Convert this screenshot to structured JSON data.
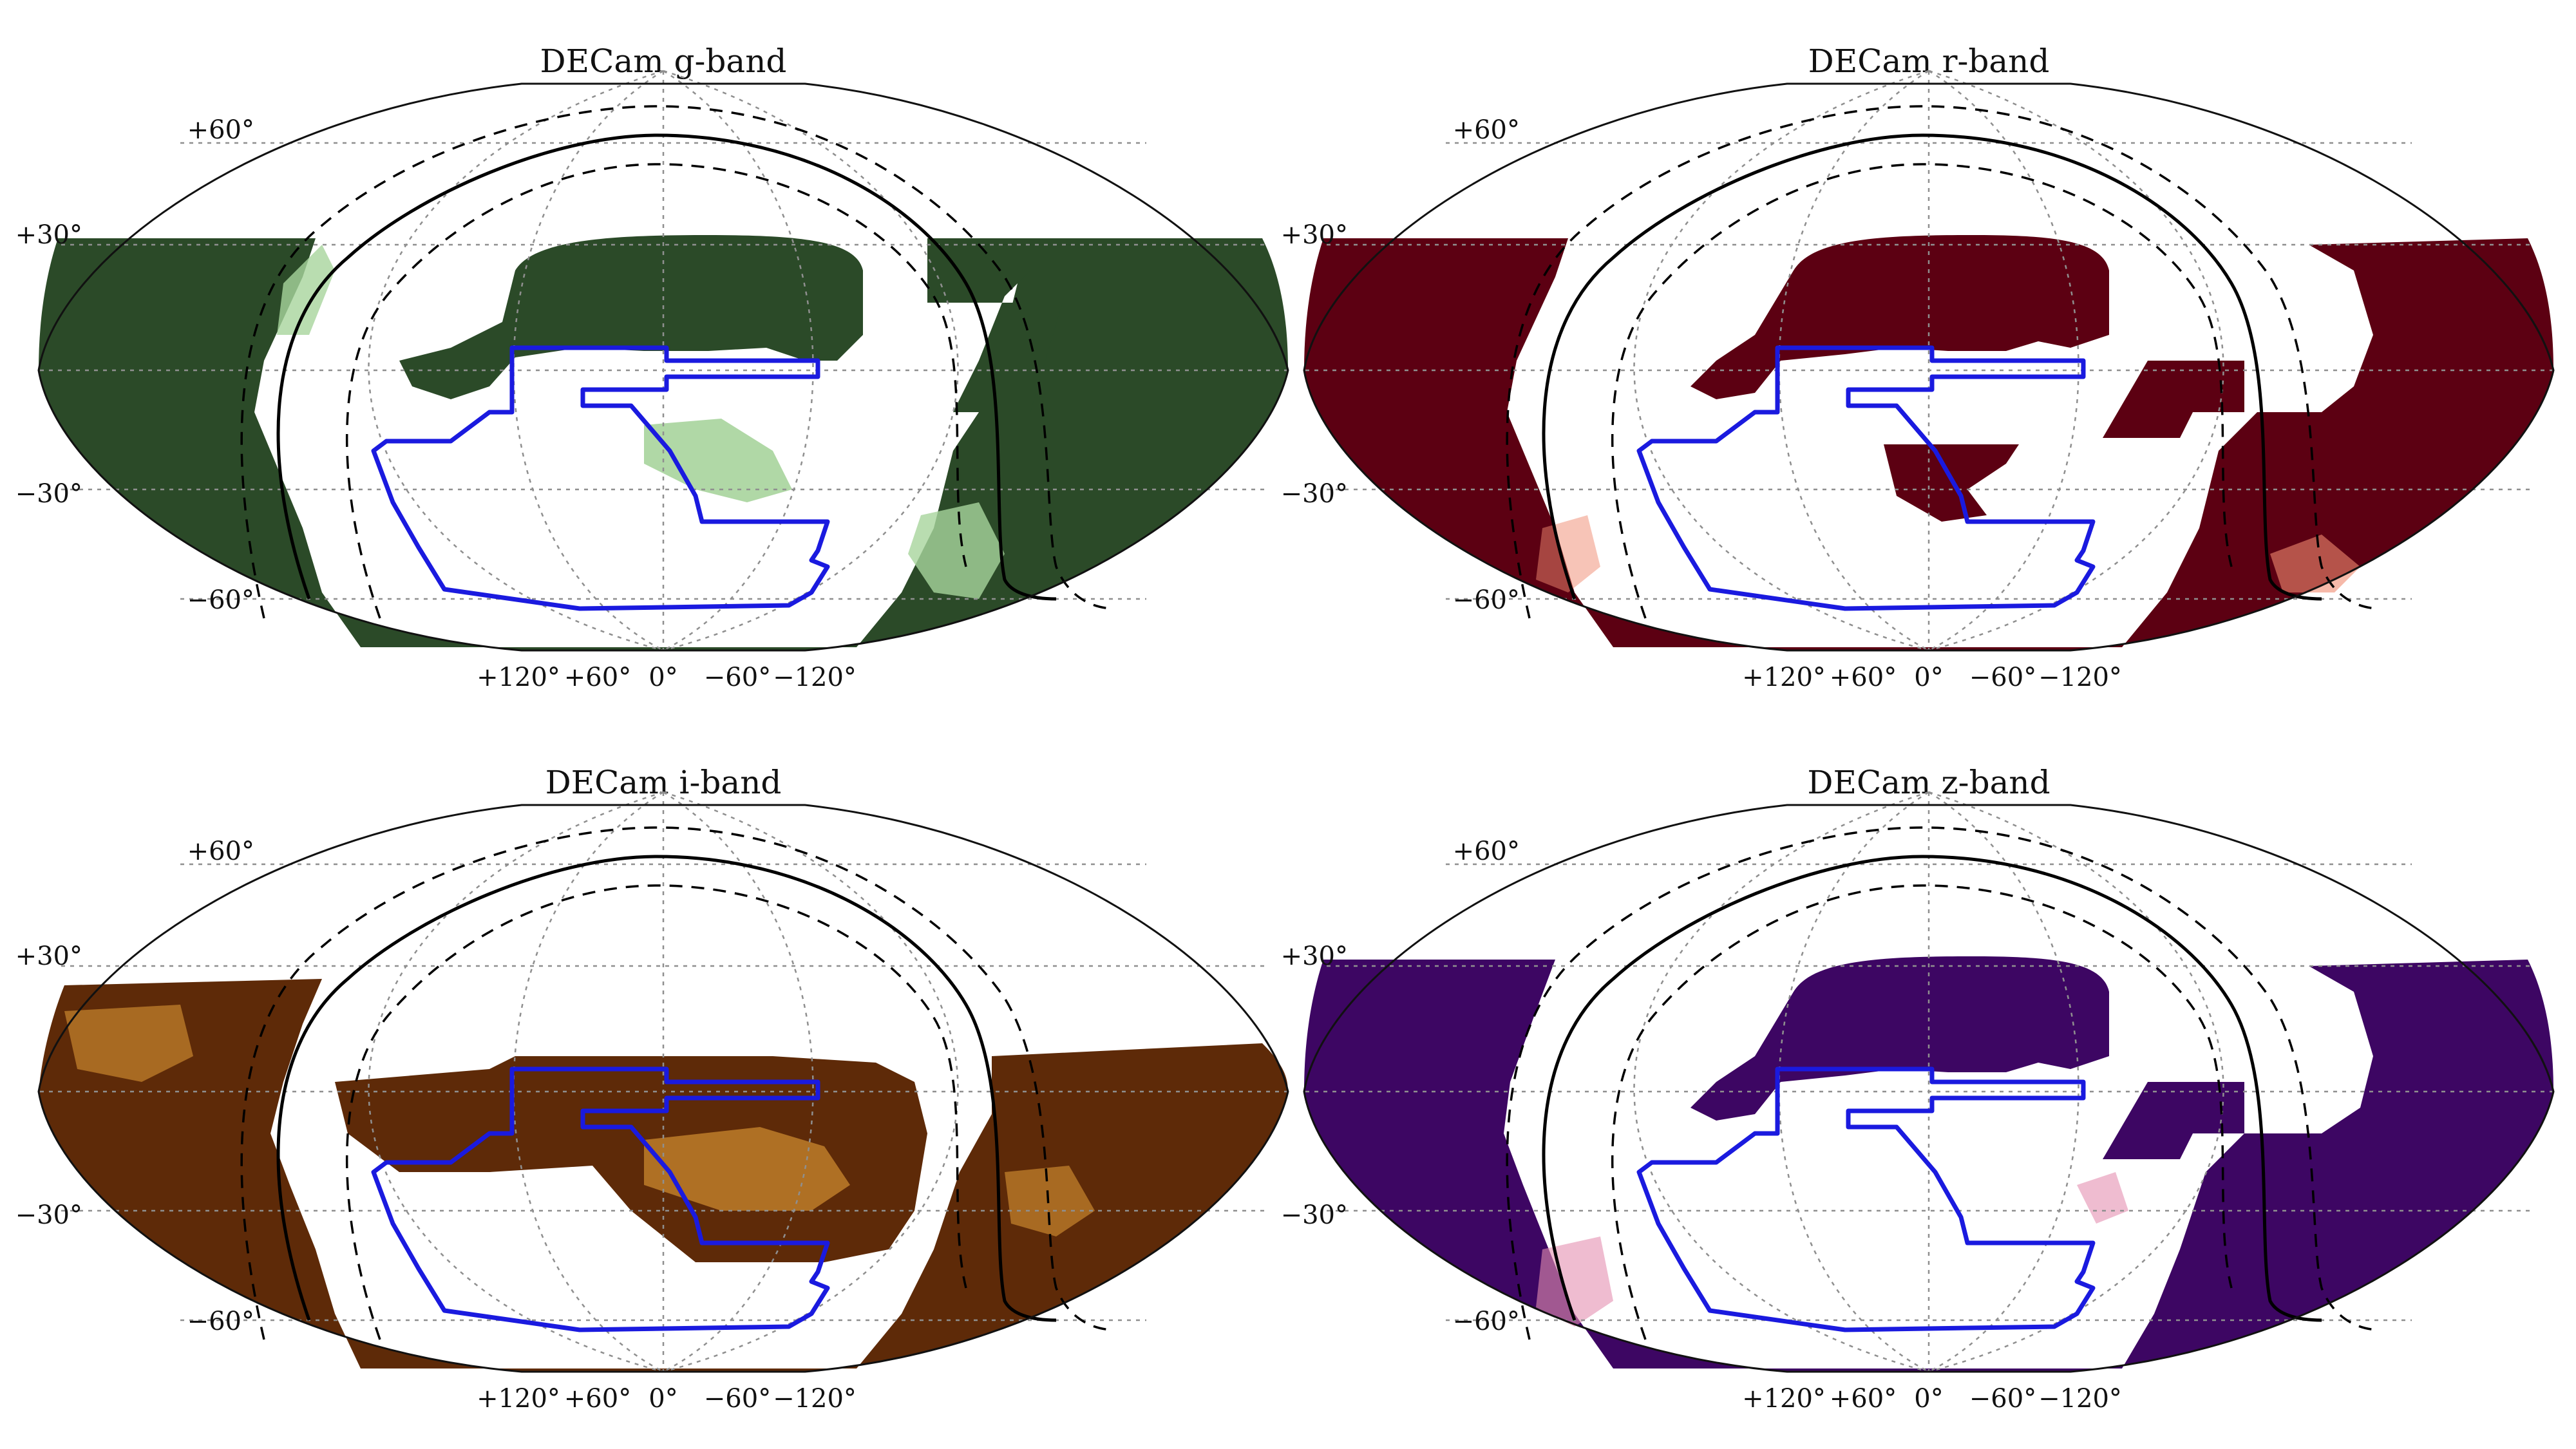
{
  "panels": [
    {
      "id": "g",
      "title": "DECam g-band",
      "color": "#2b4a28",
      "light": "#a7d49c",
      "lat_ticks": [
        "+60°",
        "+30°",
        "−30°",
        "−60°"
      ],
      "lon_ticks": [
        "+120°",
        "+60°",
        "0°",
        "−60°",
        "−120°"
      ]
    },
    {
      "id": "r",
      "title": "DECam r-band",
      "color": "#5c0012",
      "light": "#f08a70",
      "lat_ticks": [
        "+60°",
        "+30°",
        "−30°",
        "−60°"
      ],
      "lon_ticks": [
        "+120°",
        "+60°",
        "0°",
        "−60°",
        "−120°"
      ]
    },
    {
      "id": "i",
      "title": "DECam i-band",
      "color": "#5e2a08",
      "light": "#f2aa3c",
      "lat_ticks": [
        "+60°",
        "+30°",
        "−30°",
        "−60°"
      ],
      "lon_ticks": [
        "+120°",
        "+60°",
        "0°",
        "−60°",
        "−120°"
      ]
    },
    {
      "id": "z",
      "title": "DECam z-band",
      "color": "#3d0663",
      "light": "#e48fb0",
      "lat_ticks": [
        "+60°",
        "+30°",
        "−30°",
        "−60°"
      ],
      "lon_ticks": [
        "+120°",
        "+60°",
        "0°",
        "−60°",
        "−120°"
      ]
    }
  ],
  "chart_data": [
    {
      "type": "heatmap",
      "title": "DECam g-band",
      "projection": "mollweide",
      "lat_ticks": [
        60,
        30,
        -30,
        -60
      ],
      "lon_ticks": [
        120,
        60,
        0,
        -60,
        -120
      ],
      "grid": true
    },
    {
      "type": "heatmap",
      "title": "DECam r-band",
      "projection": "mollweide",
      "lat_ticks": [
        60,
        30,
        -30,
        -60
      ],
      "lon_ticks": [
        120,
        60,
        0,
        -60,
        -120
      ],
      "grid": true
    },
    {
      "type": "heatmap",
      "title": "DECam i-band",
      "projection": "mollweide",
      "lat_ticks": [
        60,
        30,
        -30,
        -60
      ],
      "lon_ticks": [
        120,
        60,
        0,
        -60,
        -120
      ],
      "grid": true
    },
    {
      "type": "heatmap",
      "title": "DECam z-band",
      "projection": "mollweide",
      "lat_ticks": [
        60,
        30,
        -30,
        -60
      ],
      "lon_ticks": [
        120,
        60,
        0,
        -60,
        -120
      ],
      "grid": true
    }
  ]
}
